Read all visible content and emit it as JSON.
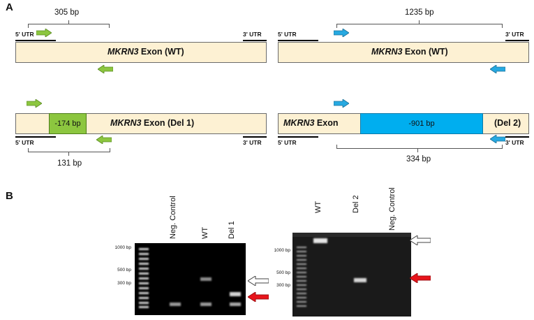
{
  "panel_a": {
    "label": "A",
    "wt_left": {
      "bp": "305 bp",
      "utr5": "5' UTR",
      "utr3": "3' UTR",
      "gene": "MKRN3",
      "exon": " Exon (WT)"
    },
    "wt_right": {
      "bp": "1235 bp",
      "utr5": "5' UTR",
      "utr3": "3' UTR",
      "gene": "MKRN3",
      "exon": " Exon (WT)"
    },
    "del1": {
      "deletion": "-174 bp",
      "gene": "MKRN3",
      "exon": " Exon (Del 1)",
      "utr5": "5' UTR",
      "utr3": "3' UTR",
      "bp": "131 bp"
    },
    "del2": {
      "gene": "MKRN3",
      "exon": " Exon",
      "deletion": "-901 bp",
      "tail": "(Del 2)",
      "utr5": "5' UTR",
      "utr3": "3' UTR",
      "bp": "334 bp"
    },
    "colors": {
      "bar": "#fdf1d3",
      "del1_box": "#8cc63f",
      "del2_box": "#00aeef",
      "arrow_green": "#8cc63f",
      "arrow_blue": "#27a9e1"
    }
  },
  "panel_b": {
    "label": "B",
    "gel_left": {
      "lanes": [
        "Neg. Control",
        "WT",
        "Del 1"
      ],
      "ladder": [
        "1000 bp",
        "500 bp",
        "300 bp"
      ]
    },
    "gel_right": {
      "lanes": [
        "WT",
        "Del 2",
        "Neg. Control"
      ],
      "ladder": [
        "1000 bp",
        "500 bp",
        "300 bp"
      ]
    },
    "colors": {
      "arrow_red": "#e8141b",
      "arrow_white": "#ffffff"
    }
  }
}
